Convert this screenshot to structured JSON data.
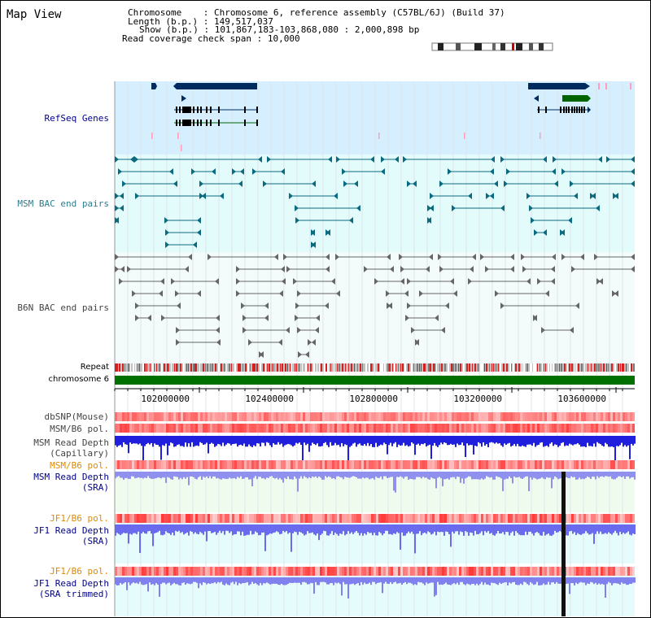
{
  "panel_title": "Map View",
  "info": {
    "chromosome_label": "Chromosome",
    "chromosome_value": "Chromosome 6, reference assembly (C57BL/6J) (Build 37)",
    "length_label": "Length (b.p.)",
    "length_value": "149,517,037",
    "show_label": "Show (b.p.)",
    "show_value": "101,867,183-103,868,080 : 2,000,898 bp",
    "span_label": "Read coverage check span",
    "span_value": "10,000"
  },
  "tracks": {
    "refseq": "RefSeq Genes",
    "msm_bac": "MSM BAC end pairs",
    "b6n_bac": "B6N BAC end pairs",
    "repeat": "Repeat",
    "chromosome": "chromosome 6",
    "dbsnp": "dbSNP(Mouse)",
    "msm_b6_pol": "MSM/B6 pol.",
    "msm_depth_cap_1": "MSM Read Depth",
    "msm_depth_cap_2": "(Capillary)",
    "msm_b6_pol_2": "MSM/B6 pol.",
    "msm_depth_sra_1": "MSM Read Depth",
    "msm_depth_sra_2": "(SRA)",
    "jf1_b6_pol": "JF1/B6 pol.",
    "jf1_depth_sra_1": "JF1 Read Depth",
    "jf1_depth_sra_2": "(SRA)",
    "jf1_b6_pol_2": "JF1/B6 pol.",
    "jf1_depth_trim_1": "JF1 Read Depth",
    "jf1_depth_trim_2": "(SRA trimmed)"
  },
  "axis_ticks": [
    "102000000",
    "102400000",
    "102800000",
    "103200000",
    "103600000"
  ],
  "colors": {
    "refseq_bg": "#d6efff",
    "bac_bg": "#e4fbfb",
    "gene_dark": "#002b5e",
    "gene_green": "#006400",
    "msm_bac": "#0a6b80",
    "b6n_bac": "#666666",
    "chromosome_bar": "#007000",
    "label_blue": "#00008b",
    "label_orange": "#e08a00",
    "label_teal": "#2c7d8e",
    "label_gray": "#444444"
  }
}
